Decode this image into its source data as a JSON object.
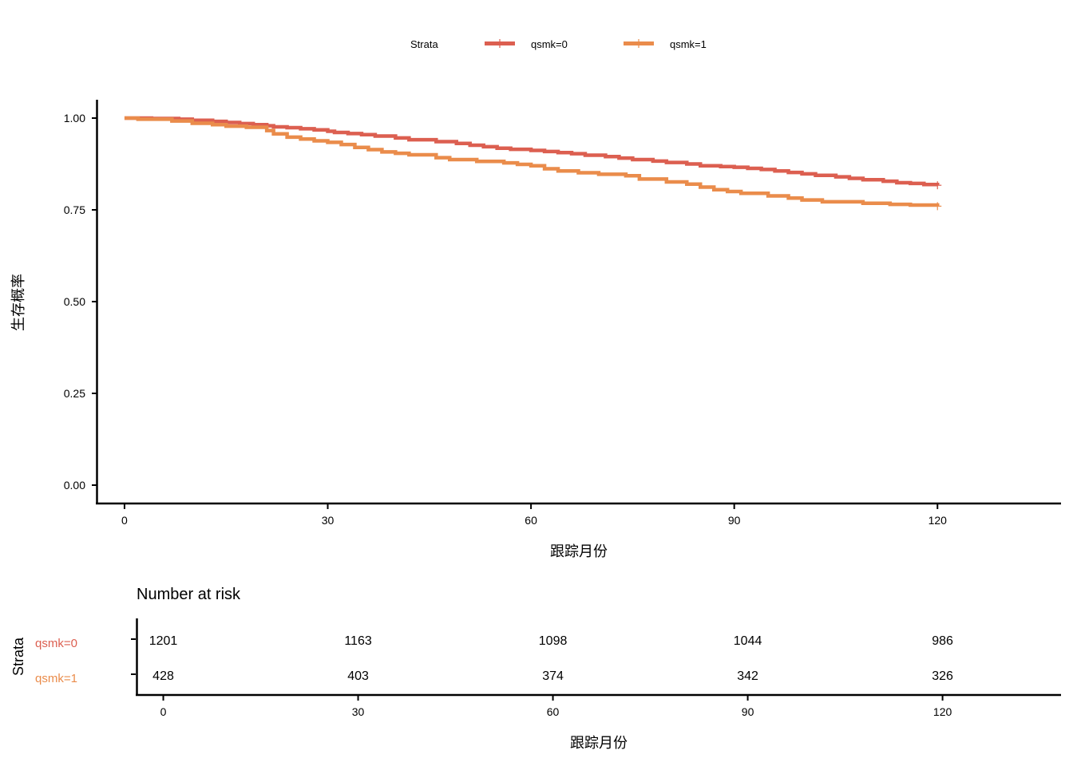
{
  "chart_data": [
    {
      "type": "line",
      "subtype": "kaplan-meier",
      "ylabel": "生存概率",
      "xlabel": "跟踪月份",
      "xlim": [
        -4,
        138
      ],
      "ylim": [
        -0.05,
        1.05
      ],
      "x_ticks": [
        0,
        30,
        60,
        90,
        120
      ],
      "y_ticks": [
        0.0,
        0.25,
        0.5,
        0.75,
        1.0
      ],
      "y_tick_labels": [
        "0.00",
        "0.25",
        "0.50",
        "0.75",
        "1.00"
      ],
      "legend": {
        "title": "Strata",
        "position": "top",
        "entries": [
          "qsmk=0",
          "qsmk=1"
        ]
      },
      "grid": false,
      "series": [
        {
          "name": "qsmk=0",
          "color": "#dc5f50",
          "x": [
            0,
            4,
            8,
            10,
            13,
            15,
            17,
            19,
            21,
            22,
            24,
            26,
            28,
            30,
            31,
            33,
            35,
            37,
            40,
            42,
            46,
            49,
            51,
            53,
            55,
            57,
            60,
            62,
            64,
            66,
            68,
            71,
            73,
            75,
            78,
            80,
            83,
            85,
            88,
            90,
            92,
            94,
            96,
            98,
            100,
            102,
            105,
            107,
            109,
            112,
            114,
            116,
            118,
            120
          ],
          "y": [
            1.0,
            0.999,
            0.997,
            0.994,
            0.991,
            0.988,
            0.985,
            0.982,
            0.979,
            0.976,
            0.974,
            0.971,
            0.968,
            0.964,
            0.961,
            0.958,
            0.955,
            0.951,
            0.946,
            0.941,
            0.936,
            0.931,
            0.926,
            0.922,
            0.918,
            0.915,
            0.912,
            0.909,
            0.906,
            0.903,
            0.899,
            0.895,
            0.891,
            0.887,
            0.883,
            0.879,
            0.875,
            0.87,
            0.868,
            0.866,
            0.863,
            0.86,
            0.856,
            0.852,
            0.848,
            0.844,
            0.84,
            0.836,
            0.832,
            0.828,
            0.824,
            0.822,
            0.819,
            0.817
          ]
        },
        {
          "name": "qsmk=1",
          "color": "#ea8c4b",
          "x": [
            0,
            2,
            7,
            10,
            13,
            15,
            18,
            21,
            22,
            24,
            26,
            28,
            30,
            32,
            34,
            36,
            38,
            40,
            42,
            46,
            48,
            52,
            56,
            58,
            60,
            62,
            64,
            67,
            70,
            74,
            76,
            80,
            83,
            85,
            87,
            89,
            91,
            95,
            98,
            100,
            103,
            109,
            113,
            116,
            120
          ],
          "y": [
            1.0,
            0.997,
            0.992,
            0.986,
            0.982,
            0.978,
            0.975,
            0.966,
            0.957,
            0.948,
            0.943,
            0.938,
            0.934,
            0.928,
            0.92,
            0.914,
            0.908,
            0.904,
            0.9,
            0.892,
            0.887,
            0.882,
            0.878,
            0.874,
            0.87,
            0.862,
            0.856,
            0.851,
            0.847,
            0.843,
            0.834,
            0.826,
            0.82,
            0.812,
            0.805,
            0.8,
            0.795,
            0.788,
            0.782,
            0.777,
            0.772,
            0.768,
            0.765,
            0.763,
            0.76
          ]
        }
      ]
    },
    {
      "type": "table",
      "title": "Number at risk",
      "ylabel": "Strata",
      "xlabel": "跟踪月份",
      "xlim": [
        -4,
        138
      ],
      "x_ticks": [
        0,
        30,
        60,
        90,
        120
      ],
      "rows": [
        {
          "name": "qsmk=0",
          "color": "#dc5f50",
          "values": [
            1201,
            1163,
            1098,
            1044,
            986
          ]
        },
        {
          "name": "qsmk=1",
          "color": "#ea8c4b",
          "values": [
            428,
            403,
            374,
            342,
            326
          ]
        }
      ]
    }
  ]
}
